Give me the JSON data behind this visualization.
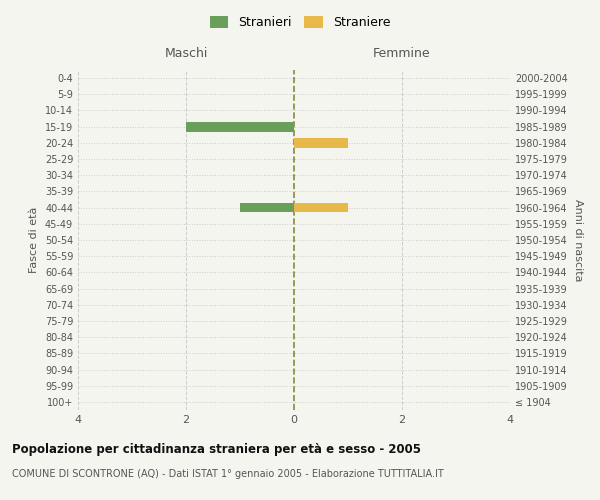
{
  "age_groups": [
    "100+",
    "95-99",
    "90-94",
    "85-89",
    "80-84",
    "75-79",
    "70-74",
    "65-69",
    "60-64",
    "55-59",
    "50-54",
    "45-49",
    "40-44",
    "35-39",
    "30-34",
    "25-29",
    "20-24",
    "15-19",
    "10-14",
    "5-9",
    "0-4"
  ],
  "birth_years": [
    "≤ 1904",
    "1905-1909",
    "1910-1914",
    "1915-1919",
    "1920-1924",
    "1925-1929",
    "1930-1934",
    "1935-1939",
    "1940-1944",
    "1945-1949",
    "1950-1954",
    "1955-1959",
    "1960-1964",
    "1965-1969",
    "1970-1974",
    "1975-1979",
    "1980-1984",
    "1985-1989",
    "1990-1994",
    "1995-1999",
    "2000-2004"
  ],
  "maschi": [
    0,
    0,
    0,
    0,
    0,
    0,
    0,
    0,
    0,
    0,
    0,
    0,
    1,
    0,
    0,
    0,
    0,
    2,
    0,
    0,
    0
  ],
  "femmine": [
    0,
    0,
    0,
    0,
    0,
    0,
    0,
    0,
    0,
    0,
    0,
    0,
    1,
    0,
    0,
    0,
    1,
    0,
    0,
    0,
    0
  ],
  "color_maschi": "#6a9e5b",
  "color_femmine": "#e8b84b",
  "xlim": 4,
  "xlabel_left": "Maschi",
  "xlabel_right": "Femmine",
  "ylabel_left": "Fasce di età",
  "ylabel_right": "Anni di nascita",
  "title": "Popolazione per cittadinanza straniera per età e sesso - 2005",
  "subtitle": "COMUNE DI SCONTRONE (AQ) - Dati ISTAT 1° gennaio 2005 - Elaborazione TUTTITALIA.IT",
  "legend_maschi": "Stranieri",
  "legend_femmine": "Straniere",
  "bg_color": "#f5f5f0",
  "bar_height": 0.6,
  "grid_color": "#cccccc",
  "center_line_color": "#888840"
}
